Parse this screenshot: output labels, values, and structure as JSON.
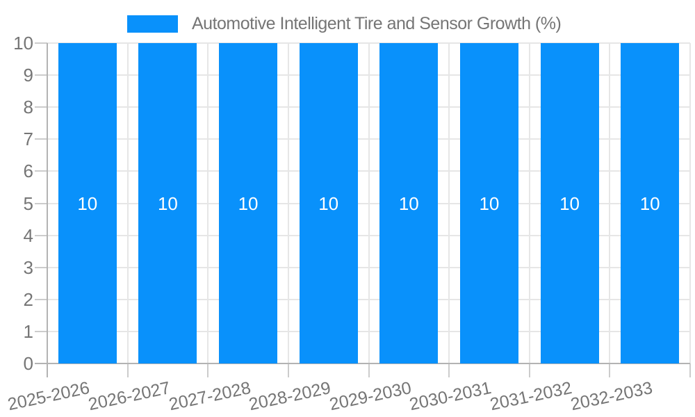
{
  "chart_data": {
    "type": "bar",
    "title": "Automotive Intelligent Tire and Sensor Growth (%)",
    "legend": {
      "position": "top",
      "label": "Automotive Intelligent Tire and Sensor Growth (%)"
    },
    "categories": [
      "2025-2026",
      "2026-2027",
      "2027-2028",
      "2028-2029",
      "2029-2030",
      "2030-2031",
      "2031-2032",
      "2032-2033"
    ],
    "series": [
      {
        "name": "Automotive Intelligent Tire and Sensor Growth (%)",
        "values": [
          10,
          10,
          10,
          10,
          10,
          10,
          10,
          10
        ]
      }
    ],
    "bar_value_labels": [
      "10",
      "10",
      "10",
      "10",
      "10",
      "10",
      "10",
      "10"
    ],
    "xlabel": "",
    "ylabel": "",
    "ylim": [
      0,
      10
    ],
    "yticks": [
      0,
      1,
      2,
      3,
      4,
      5,
      6,
      7,
      8,
      9,
      10
    ],
    "ytick_labels": [
      "0",
      "1",
      "2",
      "3",
      "4",
      "5",
      "6",
      "7",
      "8",
      "9",
      "10"
    ],
    "grid": true,
    "x_label_rotation_deg": -12,
    "colors": {
      "bar": "#0991fb",
      "bar_label_text": "#ffffff",
      "axis_text": "#757575",
      "title_text": "#757575",
      "axis_line": "#b3b3b3",
      "gridline": "#e6e6e6",
      "tick": "#cccccc",
      "background": "#ffffff"
    }
  }
}
